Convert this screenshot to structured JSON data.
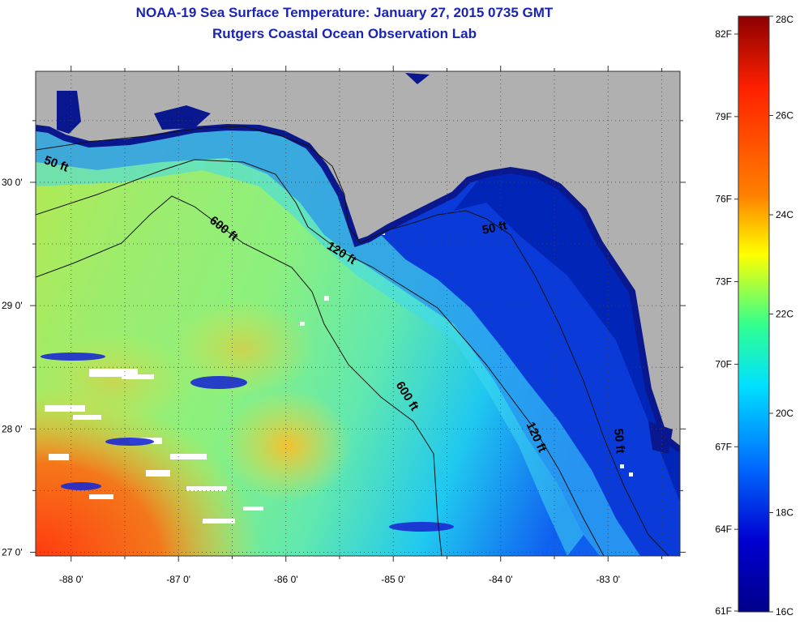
{
  "title_line1": "NOAA-19 Sea Surface Temperature:  January 27, 2015 0735 GMT",
  "title_line2": "Rutgers Coastal Ocean Observation Lab",
  "map": {
    "x_ticks": [
      {
        "lon": -88,
        "label": "-88 0'"
      },
      {
        "lon": -87,
        "label": "-87 0'"
      },
      {
        "lon": -86,
        "label": "-86 0'"
      },
      {
        "lon": -85,
        "label": "-85 0'"
      },
      {
        "lon": -84,
        "label": "-84 0'"
      },
      {
        "lon": -83,
        "label": "-83 0'"
      }
    ],
    "y_ticks": [
      {
        "lat": 30,
        "label": "30 0'"
      },
      {
        "lat": 29,
        "label": "29 0'"
      },
      {
        "lat": 28,
        "label": "28 0'"
      },
      {
        "lat": 27,
        "label": "27 0'"
      }
    ],
    "lon_range": [
      -88.33,
      -82.33
    ],
    "lat_range": [
      26.97,
      30.9
    ],
    "land_color": "#b0b0b0",
    "contour_labels": [
      {
        "text": "50 ft",
        "lon": -88.15,
        "lat": 30.12,
        "angle": 20
      },
      {
        "text": "600 ft",
        "lon": -86.6,
        "lat": 29.6,
        "angle": 38
      },
      {
        "text": "120 ft",
        "lon": -85.5,
        "lat": 29.4,
        "angle": 32
      },
      {
        "text": "50 ft",
        "lon": -84.05,
        "lat": 29.6,
        "angle": -12
      },
      {
        "text": "600 ft",
        "lon": -84.9,
        "lat": 28.25,
        "angle": 58
      },
      {
        "text": "120 ft",
        "lon": -83.7,
        "lat": 27.92,
        "angle": 65
      },
      {
        "text": "50 ft",
        "lon": -82.93,
        "lat": 27.9,
        "angle": 85
      }
    ]
  },
  "colorbar": {
    "fahrenheit": [
      "82F",
      "79F",
      "76F",
      "73F",
      "70F",
      "67F",
      "64F",
      "61F"
    ],
    "celsius": [
      "28C",
      "26C",
      "24C",
      "22C",
      "20C",
      "18C",
      "16C"
    ],
    "colors": [
      "#8b0000",
      "#ff2000",
      "#ff8000",
      "#ffff00",
      "#30ff90",
      "#00e0ff",
      "#0070ff",
      "#0000d0",
      "#00008b"
    ]
  }
}
